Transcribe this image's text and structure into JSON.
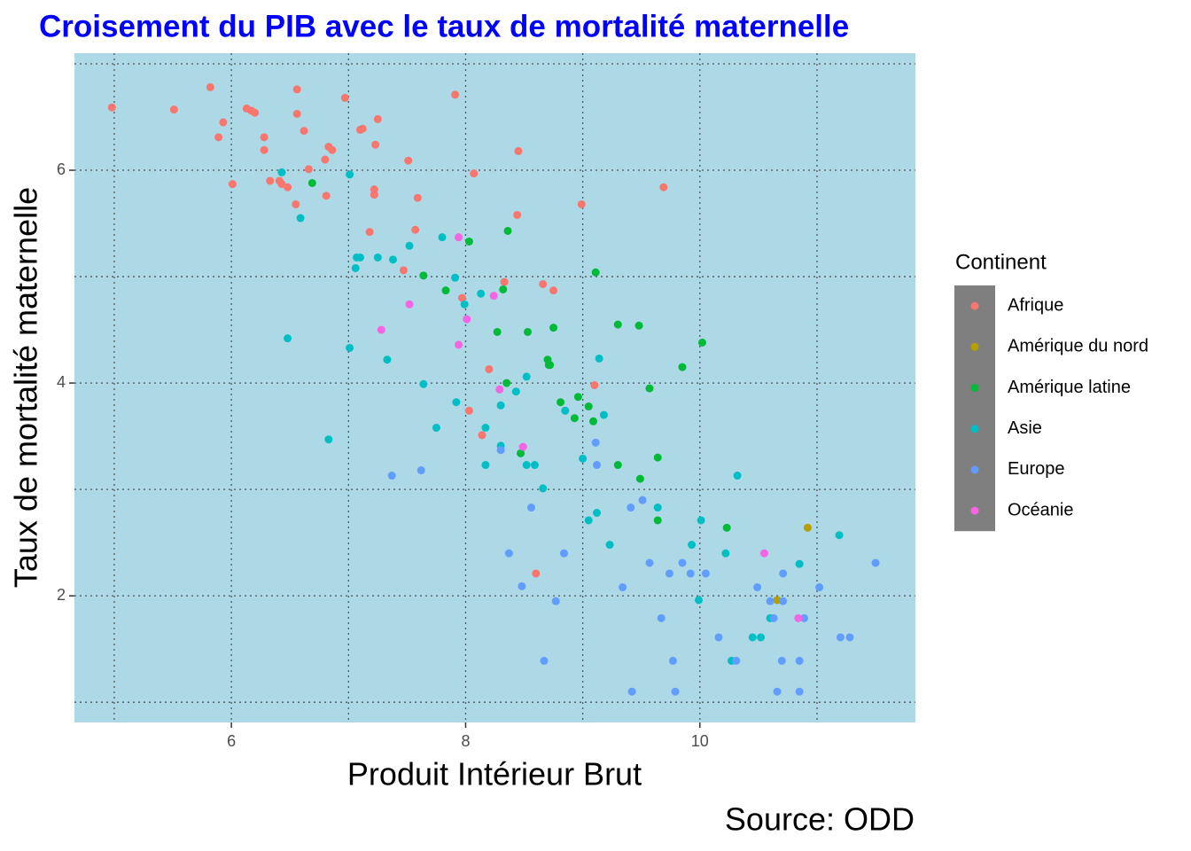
{
  "chart_data": {
    "type": "scatter",
    "title": "Croisement du PIB avec le taux de mortalité maternelle",
    "x_label": "Produit Intérieur Brut",
    "y_label": "Taux de mortalité maternelle",
    "caption": "Source: ODD",
    "legend_title": "Continent",
    "legend_position": "right",
    "background": "#add8e6",
    "grid": true,
    "xlim": [
      4.66,
      11.84
    ],
    "ylim": [
      0.81,
      7.1
    ],
    "xticks": [
      6,
      8,
      10
    ],
    "yticks": [
      2,
      4,
      6
    ],
    "xminorticks": [
      5,
      7,
      9,
      11
    ],
    "yminorticks": [
      1,
      3,
      5,
      7
    ],
    "series": [
      {
        "name": "Afrique",
        "color": "#F8766D",
        "x": [
          4.98,
          5.51,
          5.82,
          5.89,
          5.93,
          6.01,
          6.13,
          6.17,
          6.2,
          6.28,
          6.28,
          6.33,
          6.41,
          6.43,
          6.48,
          6.55,
          6.56,
          6.56,
          6.62,
          6.66,
          6.8,
          6.81,
          6.83,
          6.86,
          6.97,
          7.1,
          7.12,
          7.18,
          7.22,
          7.22,
          7.23,
          7.25,
          7.47,
          7.51,
          7.57,
          7.59,
          7.91,
          7.97,
          8.03,
          8.07,
          8.14,
          8.2,
          8.33,
          8.44,
          8.45,
          8.6,
          8.66,
          8.75,
          8.99,
          9.1,
          9.69
        ],
        "y": [
          6.59,
          6.57,
          6.78,
          6.31,
          6.45,
          5.87,
          6.58,
          6.56,
          6.54,
          6.31,
          6.19,
          5.9,
          5.9,
          5.87,
          5.84,
          5.68,
          6.76,
          6.53,
          6.37,
          6.01,
          6.1,
          5.76,
          6.22,
          6.19,
          6.68,
          6.38,
          6.39,
          5.42,
          5.82,
          5.77,
          6.24,
          6.48,
          5.06,
          6.09,
          5.44,
          5.74,
          6.71,
          4.8,
          3.74,
          5.97,
          3.51,
          4.13,
          4.95,
          5.58,
          6.18,
          2.21,
          4.93,
          4.87,
          5.68,
          3.98,
          5.84
        ]
      },
      {
        "name": "Amérique du nord",
        "color": "#B79F00",
        "x": [
          10.92,
          10.66
        ],
        "y": [
          2.64,
          1.96
        ]
      },
      {
        "name": "Amérique latine",
        "color": "#00BA38",
        "x": [
          6.69,
          7.64,
          7.83,
          8.03,
          8.27,
          8.32,
          8.35,
          8.36,
          8.47,
          8.53,
          8.7,
          8.71,
          8.72,
          8.75,
          8.81,
          8.93,
          8.96,
          9.05,
          9.09,
          9.11,
          9.3,
          9.3,
          9.48,
          9.49,
          9.57,
          9.64,
          9.64,
          9.85,
          10.02,
          10.23
        ],
        "y": [
          5.88,
          5.01,
          4.87,
          5.33,
          4.48,
          4.88,
          4.0,
          5.43,
          3.34,
          4.48,
          4.22,
          4.17,
          4.17,
          4.52,
          3.82,
          3.67,
          3.87,
          3.78,
          3.64,
          5.04,
          4.55,
          3.23,
          4.54,
          3.1,
          3.95,
          3.3,
          2.71,
          4.15,
          4.38,
          2.64
        ]
      },
      {
        "name": "Asie",
        "color": "#00BFC4",
        "x": [
          6.43,
          6.48,
          6.59,
          6.83,
          7.01,
          7.01,
          7.06,
          7.07,
          7.1,
          7.25,
          7.33,
          7.38,
          7.52,
          7.64,
          7.75,
          7.8,
          7.91,
          7.92,
          7.99,
          8.13,
          8.17,
          8.17,
          8.3,
          8.3,
          8.43,
          8.52,
          8.52,
          8.59,
          8.66,
          8.85,
          9.0,
          9.05,
          9.12,
          9.14,
          9.18,
          9.23,
          9.64,
          9.93,
          9.99,
          10.01,
          10.22,
          10.27,
          10.32,
          10.45,
          10.52,
          10.6,
          10.85,
          11.19
        ],
        "y": [
          5.98,
          4.42,
          5.55,
          3.47,
          5.96,
          4.33,
          5.08,
          5.18,
          5.18,
          5.18,
          4.22,
          5.16,
          5.29,
          3.99,
          3.58,
          5.37,
          4.99,
          3.82,
          4.74,
          4.84,
          3.58,
          3.23,
          3.79,
          3.41,
          3.92,
          4.06,
          3.23,
          3.23,
          3.01,
          3.74,
          3.29,
          2.71,
          2.78,
          4.23,
          3.7,
          2.48,
          2.83,
          2.48,
          1.96,
          2.71,
          2.4,
          1.39,
          3.13,
          1.61,
          1.61,
          1.79,
          2.3,
          2.57
        ]
      },
      {
        "name": "Europe",
        "color": "#619CFF",
        "x": [
          7.37,
          7.62,
          8.3,
          8.37,
          8.48,
          8.56,
          8.67,
          8.77,
          8.84,
          9.11,
          9.12,
          9.34,
          9.41,
          9.42,
          9.51,
          9.57,
          9.67,
          9.74,
          9.77,
          9.79,
          9.85,
          9.92,
          10.05,
          10.16,
          10.31,
          10.49,
          10.6,
          10.66,
          10.7,
          10.71,
          10.71,
          10.85,
          10.85,
          10.89,
          11.02,
          11.2,
          11.28,
          11.5,
          10.63
        ],
        "y": [
          3.13,
          3.18,
          3.37,
          2.4,
          2.09,
          2.83,
          1.39,
          1.95,
          2.4,
          3.44,
          3.23,
          2.08,
          2.83,
          1.1,
          2.9,
          2.31,
          1.79,
          2.21,
          1.39,
          1.1,
          2.31,
          2.21,
          2.21,
          1.61,
          1.39,
          2.08,
          1.95,
          1.1,
          1.39,
          2.21,
          1.95,
          1.39,
          1.1,
          1.79,
          2.08,
          1.61,
          1.61,
          2.31,
          1.79
        ]
      },
      {
        "name": "Océanie",
        "color": "#F564E3",
        "x": [
          7.28,
          7.52,
          7.94,
          7.94,
          8.01,
          8.24,
          8.29,
          8.49,
          10.55,
          10.84
        ],
        "y": [
          4.5,
          4.74,
          5.37,
          4.36,
          4.6,
          4.82,
          3.94,
          3.4,
          2.4,
          1.79
        ]
      }
    ]
  }
}
